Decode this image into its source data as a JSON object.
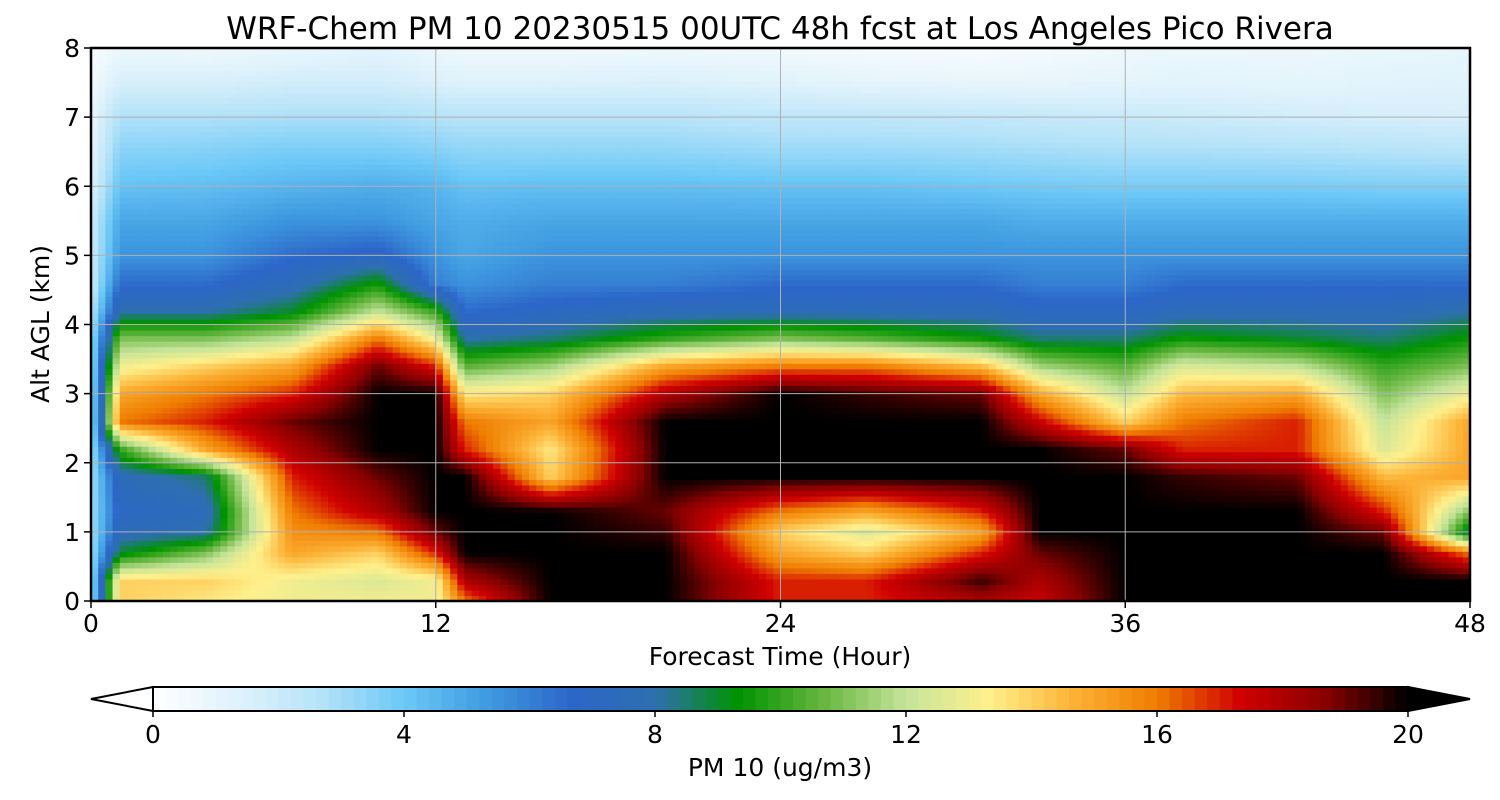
{
  "chart_data": {
    "type": "heatmap",
    "title": "WRF-Chem PM 10  20230515 00UTC 48h fcst at Los Angeles Pico Rivera",
    "xlabel": "Forecast Time (Hour)",
    "ylabel": "Alt AGL (km)",
    "xlim": [
      0,
      48
    ],
    "ylim": [
      0,
      8
    ],
    "x_ticks": [
      "0",
      "12",
      "24",
      "36",
      "48"
    ],
    "y_ticks": [
      "0",
      "1",
      "2",
      "3",
      "4",
      "5",
      "6",
      "7",
      "8"
    ],
    "grid": true,
    "colorbar": {
      "label": "PM 10  (ug/m3)",
      "range": [
        0,
        20
      ],
      "ticks": [
        "0",
        "4",
        "8",
        "12",
        "16",
        "20"
      ],
      "extend": "both",
      "colors": [
        "#ffffff",
        "#dff2fb",
        "#b6e3f8",
        "#6cc8f7",
        "#3f9ae0",
        "#2c66c8",
        "#2e6fb0",
        "#009300",
        "#67b640",
        "#c5e49a",
        "#fff08c",
        "#fcb236",
        "#ef7d00",
        "#d00000",
        "#8a0000",
        "#000000"
      ]
    },
    "x": [
      0,
      1,
      4,
      7,
      10,
      12,
      13,
      16,
      20,
      24,
      27,
      31,
      33,
      36,
      38,
      42,
      45,
      48
    ],
    "y": [
      0,
      0.3,
      0.7,
      1,
      1.3,
      1.8,
      2.2,
      2.6,
      3.0,
      3.4,
      3.8,
      4.2,
      4.6,
      5,
      5.5,
      6,
      6.5,
      7,
      7.5,
      8
    ],
    "values": [
      [
        3.0,
        14.0,
        13.5,
        13.0,
        13.0,
        13.0,
        16.0,
        20.0,
        20.0,
        17.0,
        17.0,
        18.0,
        17.5,
        20.0,
        20.0,
        20.0,
        20.0,
        20.0
      ],
      [
        3.0,
        14.0,
        14.0,
        13.0,
        12.5,
        13.0,
        18.0,
        20.0,
        20.0,
        17.0,
        17.0,
        19.5,
        18.0,
        20.0,
        20.0,
        20.0,
        20.0,
        20.0
      ],
      [
        3.0,
        9.0,
        11.0,
        15.0,
        14.0,
        17.0,
        20.0,
        20.0,
        20.0,
        15.0,
        14.0,
        17.0,
        19.0,
        20.0,
        20.0,
        20.0,
        20.0,
        16.0
      ],
      [
        3.0,
        7.5,
        8.0,
        15.5,
        16.0,
        19.0,
        20.0,
        20.0,
        19.5,
        14.0,
        12.5,
        15.0,
        20.0,
        20.0,
        20.0,
        20.0,
        19.0,
        8.5
      ],
      [
        3.0,
        7.0,
        7.5,
        16.0,
        18.0,
        20.0,
        20.0,
        20.0,
        19.0,
        16.0,
        15.0,
        17.0,
        20.0,
        20.0,
        20.0,
        20.0,
        17.0,
        11.0
      ],
      [
        3.0,
        7.5,
        8.5,
        17.0,
        19.0,
        20.0,
        20.0,
        14.0,
        20.0,
        20.0,
        20.0,
        20.0,
        20.0,
        20.0,
        19.5,
        19.0,
        14.5,
        15.0
      ],
      [
        3.0,
        10.0,
        15.0,
        18.0,
        20.0,
        20.0,
        17.0,
        13.5,
        20.0,
        20.0,
        20.0,
        20.0,
        20.0,
        19.0,
        17.0,
        17.0,
        12.5,
        15.0
      ],
      [
        3.0,
        16.0,
        17.0,
        19.0,
        20.0,
        20.0,
        16.0,
        15.0,
        20.0,
        20.0,
        20.0,
        20.0,
        17.5,
        14.0,
        16.0,
        17.0,
        12.0,
        15.0
      ],
      [
        3.0,
        15.0,
        16.0,
        17.0,
        20.0,
        20.0,
        13.5,
        14.0,
        18.0,
        20.0,
        19.5,
        19.0,
        15.0,
        12.0,
        14.5,
        15.0,
        11.0,
        13.0
      ],
      [
        3.0,
        13.0,
        14.0,
        15.0,
        19.0,
        17.0,
        10.5,
        11.5,
        15.0,
        16.0,
        16.0,
        14.5,
        11.5,
        10.5,
        12.5,
        12.0,
        10.0,
        11.0
      ],
      [
        3.0,
        11.0,
        11.0,
        12.0,
        16.0,
        13.0,
        8.0,
        8.5,
        10.0,
        11.0,
        10.5,
        9.5,
        8.5,
        8.5,
        9.5,
        9.0,
        8.5,
        9.5
      ],
      [
        2.5,
        8.0,
        8.0,
        9.0,
        12.0,
        10.0,
        6.5,
        7.0,
        7.5,
        7.5,
        7.5,
        7.5,
        7.0,
        7.0,
        7.5,
        7.5,
        7.5,
        8.0
      ],
      [
        2.0,
        6.5,
        6.5,
        7.5,
        9.5,
        6.0,
        5.5,
        6.0,
        6.0,
        6.5,
        6.5,
        6.5,
        6.0,
        6.0,
        6.5,
        6.5,
        6.5,
        6.5
      ],
      [
        2.0,
        5.5,
        5.5,
        6.5,
        7.0,
        5.5,
        5.0,
        5.5,
        5.5,
        5.5,
        5.5,
        5.5,
        5.5,
        5.5,
        5.5,
        5.5,
        5.5,
        5.5
      ],
      [
        2.0,
        5.0,
        5.0,
        5.5,
        5.5,
        5.0,
        4.8,
        5.0,
        5.0,
        5.0,
        5.0,
        5.0,
        4.8,
        4.8,
        4.8,
        4.8,
        4.8,
        4.8
      ],
      [
        1.5,
        4.2,
        4.3,
        4.6,
        4.8,
        4.6,
        4.2,
        4.3,
        4.3,
        4.2,
        4.2,
        4.0,
        3.9,
        3.8,
        3.8,
        3.8,
        3.7,
        3.7
      ],
      [
        1.2,
        3.5,
        3.6,
        3.8,
        3.8,
        3.6,
        3.4,
        3.4,
        3.4,
        3.2,
        3.2,
        3.1,
        3.0,
        2.9,
        2.9,
        2.8,
        2.7,
        2.6
      ],
      [
        1.0,
        2.8,
        2.8,
        2.9,
        2.9,
        2.7,
        2.6,
        2.6,
        2.6,
        2.4,
        2.4,
        2.3,
        2.2,
        2.1,
        2.0,
        1.8,
        1.7,
        1.6
      ],
      [
        0.6,
        1.6,
        1.6,
        1.8,
        1.8,
        1.5,
        1.4,
        1.4,
        1.5,
        1.3,
        1.1,
        1.0,
        1.0,
        1.1,
        1.2,
        1.1,
        1.2,
        1.3
      ],
      [
        0.3,
        0.8,
        0.7,
        0.9,
        1.2,
        0.8,
        0.6,
        0.6,
        0.7,
        0.6,
        0.5,
        0.4,
        0.5,
        0.7,
        0.8,
        0.8,
        0.9,
        1.0
      ]
    ]
  }
}
